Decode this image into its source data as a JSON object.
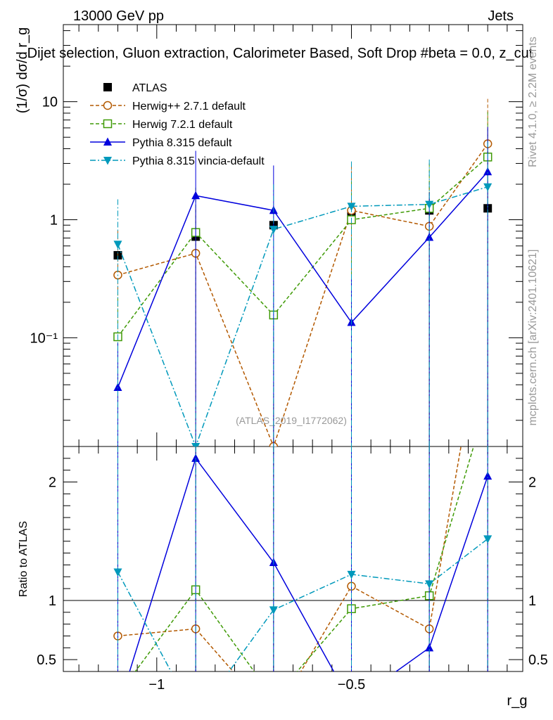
{
  "header": {
    "energy_label": "13000 GeV pp",
    "category_label": "Jets",
    "plot_title": "Dijet selection, Gluon extraction, Calorimeter Based, Soft Drop #beta = 0.0, z_cut",
    "side_label_top": "Rivet 4.1.0, ≥ 2.2M events",
    "side_label_bottom": "mcplots.cern.ch [arXiv:2401.10621]",
    "watermark": "(ATLAS_2019_I1772062)"
  },
  "chart_data": [
    {
      "type": "line",
      "panel": "main",
      "ylabel": "(1/σ) dσ/d r_g",
      "yscale": "log",
      "ylim": [
        0.012,
        45
      ],
      "x": [
        -1.1,
        -0.9,
        -0.7,
        -0.5,
        -0.3,
        -0.15
      ],
      "ytick_labels": [
        "10⁻¹",
        "1",
        "10"
      ],
      "series": [
        {
          "name": "ATLAS",
          "color": "#000000",
          "marker": "square-filled",
          "values": [
            0.5,
            0.72,
            0.9,
            1.07,
            1.2,
            1.25
          ]
        },
        {
          "name": "Herwig++ 2.7.1 default",
          "color": "#b35900",
          "marker": "circle-open",
          "dash": "dashed",
          "values": [
            0.34,
            0.52,
            0.012,
            1.2,
            0.88,
            4.4
          ]
        },
        {
          "name": "Herwig 7.2.1 default",
          "color": "#3f9a06",
          "marker": "square-open",
          "dash": "dashed",
          "values": [
            0.102,
            0.78,
            0.156,
            1.0,
            1.25,
            3.4
          ]
        },
        {
          "name": "Pythia 8.315 default",
          "color": "#0000dd",
          "marker": "triangle-up",
          "dash": "solid",
          "values": [
            0.038,
            1.6,
            1.2,
            0.135,
            0.71,
            2.55
          ]
        },
        {
          "name": "Pythia 8.315 vincia-default",
          "color": "#0099bb",
          "marker": "triangle-down",
          "dash": "dashdot",
          "values": [
            0.62,
            0.012,
            0.83,
            1.3,
            1.35,
            1.9
          ]
        }
      ]
    },
    {
      "type": "line",
      "panel": "ratio",
      "xlabel": "r_g",
      "ylabel": "Ratio to ATLAS",
      "ylim": [
        0.4,
        2.3
      ],
      "xlim": [
        -1.24,
        -0.06
      ],
      "xtick_labels": [
        "−1",
        "−0.5"
      ],
      "ytick_labels": [
        "0.5",
        "1",
        "2"
      ],
      "series": [
        {
          "name": "Herwig++ 2.7.1 default",
          "values": [
            0.7,
            0.76,
            0.01,
            1.12,
            0.76,
            3.6
          ]
        },
        {
          "name": "Herwig 7.2.1 default",
          "values": [
            0.2,
            1.09,
            0.17,
            0.93,
            1.04,
            2.7
          ]
        },
        {
          "name": "Pythia 8.315 default",
          "values": [
            0.08,
            2.2,
            1.32,
            0.13,
            0.6,
            2.05
          ]
        },
        {
          "name": "Pythia 8.315 vincia-default",
          "values": [
            1.24,
            0.01,
            0.92,
            1.22,
            1.14,
            1.52
          ]
        }
      ]
    }
  ]
}
